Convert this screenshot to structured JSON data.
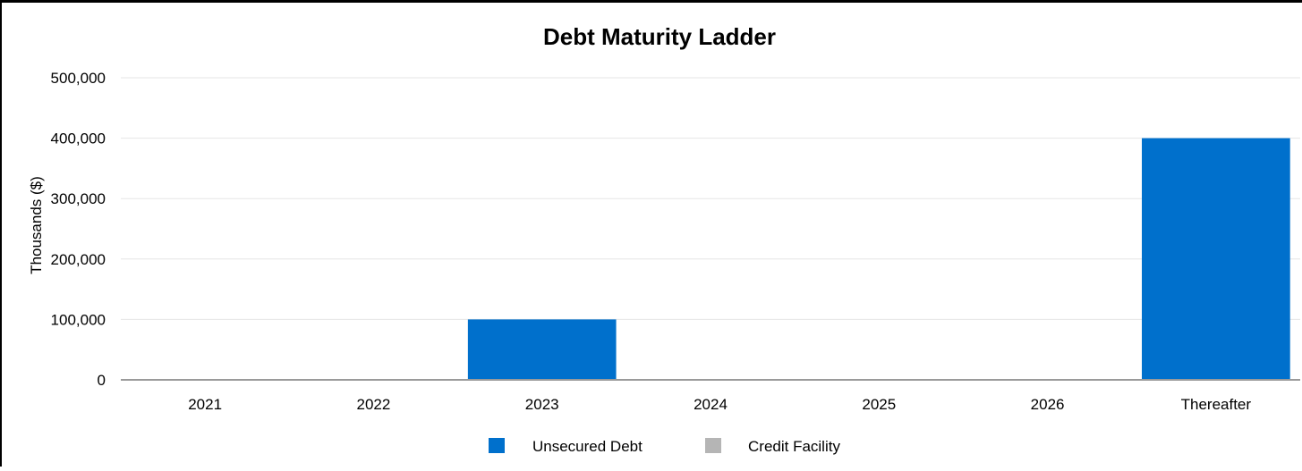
{
  "colors": {
    "unsecured": "#0070CC",
    "credit": "#B5B5B5",
    "grid": "#E6E6E6",
    "axis": "#9A9A9A",
    "text": "#000000"
  },
  "chart_data": {
    "type": "bar",
    "title": "Debt Maturity Ladder",
    "xlabel": "",
    "ylabel": "Thousands ($)",
    "ylim": [
      0,
      500000
    ],
    "yticks": [
      0,
      100000,
      200000,
      300000,
      400000,
      500000
    ],
    "ytick_labels": [
      "0",
      "100,000",
      "200,000",
      "300,000",
      "400,000",
      "500,000"
    ],
    "categories": [
      "2021",
      "2022",
      "2023",
      "2024",
      "2025",
      "2026",
      "Thereafter"
    ],
    "series": [
      {
        "name": "Unsecured Debt",
        "values": [
          0,
          0,
          100000,
          0,
          0,
          0,
          400000
        ]
      },
      {
        "name": "Credit Facility",
        "values": [
          0,
          0,
          0,
          0,
          0,
          0,
          0
        ]
      }
    ],
    "stacked": true,
    "grid": true,
    "legend": "bottom-center"
  }
}
